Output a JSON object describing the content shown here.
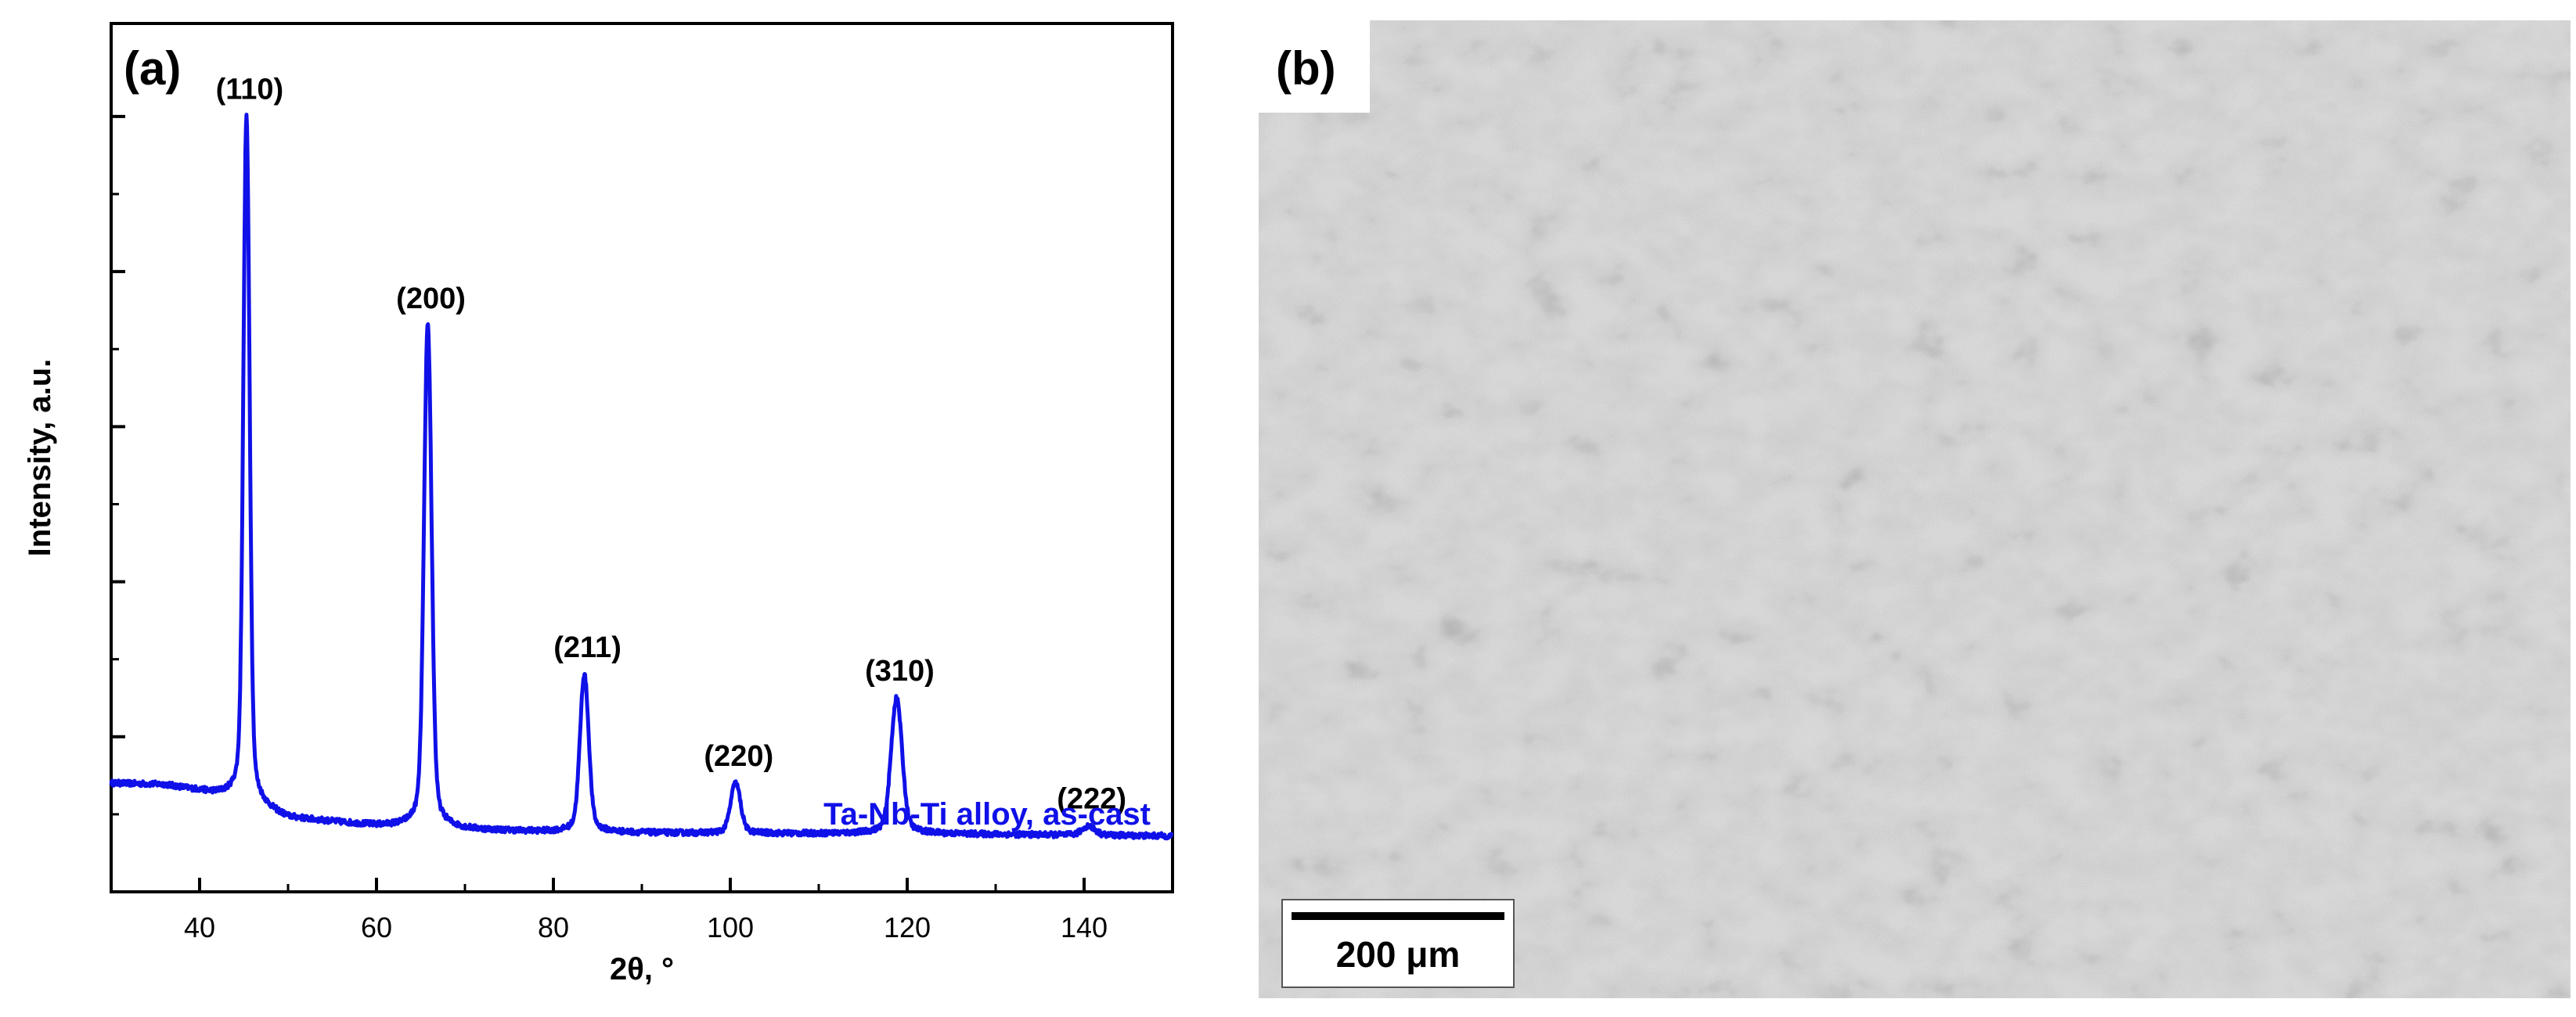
{
  "panel_a": {
    "label": "(a)",
    "chart_data": {
      "type": "line",
      "xlabel": "2θ, °",
      "ylabel": "Intensity, a.u.",
      "xlim": [
        30,
        150
      ],
      "ylim": [
        0,
        1.12
      ],
      "x_ticks": [
        40,
        60,
        80,
        100,
        120,
        140
      ],
      "y_ticks_labeled": false,
      "grid": false,
      "legend_text": "Ta-Nb-Ti alloy, as-cast",
      "legend_placement": "bottom-right",
      "series": [
        {
          "color": "#1010e8",
          "baseline": [
            [
              30,
              0.14
            ],
            [
              36,
              0.138
            ],
            [
              40,
              0.13
            ],
            [
              44,
              0.12
            ],
            [
              50,
              0.095
            ],
            [
              60,
              0.085
            ],
            [
              70,
              0.08
            ],
            [
              80,
              0.077
            ],
            [
              100,
              0.075
            ],
            [
              120,
              0.075
            ],
            [
              150,
              0.072
            ]
          ],
          "peaks": [
            {
              "label": "(110)",
              "x": 45.3,
              "y": 1.0
            },
            {
              "label": "(200)",
              "x": 65.8,
              "y": 0.73
            },
            {
              "label": "(211)",
              "x": 83.5,
              "y": 0.28
            },
            {
              "label": "(220)",
              "x": 100.6,
              "y": 0.14
            },
            {
              "label": "(310)",
              "x": 118.8,
              "y": 0.25
            },
            {
              "label": "(222)",
              "x": 140.5,
              "y": 0.085
            }
          ]
        }
      ]
    }
  },
  "panel_b": {
    "label": "(b)",
    "image_description_icon": "sem-micrograph-dendritic",
    "scale_bar_label": "200 μm"
  },
  "colors": {
    "series": "#1010e8",
    "axis": "#000000",
    "micrograph_bg": "#bdbdbd",
    "micrograph_dark": "#5a5a5a"
  }
}
